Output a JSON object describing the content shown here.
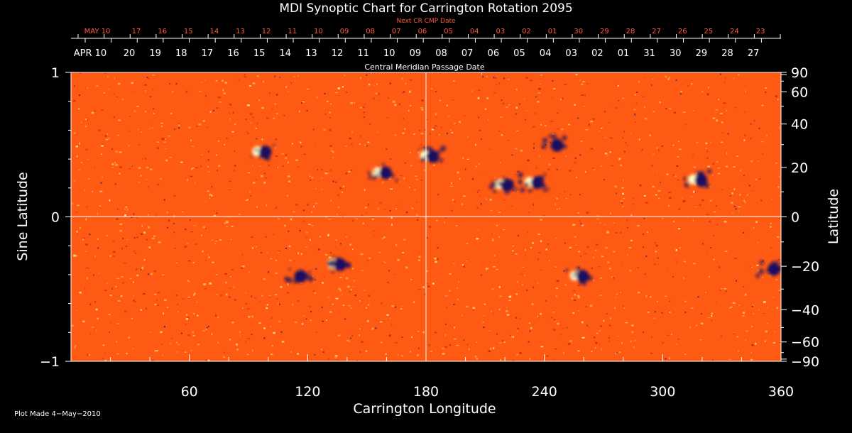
{
  "chart_data": {
    "type": "heatmap",
    "title": "MDI Synoptic Chart for Carrington Rotation 2095",
    "xlabel": "Carrington Longitude",
    "ylabel_left": "Sine Latitude",
    "ylabel_right": "Latitude",
    "xlim": [
      0,
      360
    ],
    "ylim_sine": [
      -1,
      1
    ],
    "x_ticks": [
      "60",
      "120",
      "180",
      "240",
      "300",
      "360"
    ],
    "y_ticks_left": [
      "1",
      "0",
      "−1"
    ],
    "y_ticks_right": [
      "90",
      "60",
      "40",
      "20",
      "0",
      "−20",
      "−40",
      "−60",
      "−90"
    ],
    "top_axis_label": "Central Meridian Passage Date",
    "top_axis_dates": [
      "APR 10",
      "20",
      "19",
      "18",
      "17",
      "16",
      "15",
      "14",
      "13",
      "12",
      "11",
      "10",
      "09",
      "08",
      "07",
      "06",
      "05",
      "04",
      "03",
      "02",
      "01",
      "31",
      "30",
      "29",
      "28",
      "27"
    ],
    "next_axis_label": "Next CR CMP Date",
    "next_axis_dates": [
      "MAY 10",
      "17",
      "16",
      "15",
      "14",
      "13",
      "12",
      "11",
      "10",
      "09",
      "08",
      "07",
      "06",
      "05",
      "04",
      "03",
      "02",
      "01",
      "30",
      "29",
      "28",
      "27",
      "26",
      "25",
      "24",
      "23"
    ],
    "colors": {
      "background": "#000000",
      "map_base": "#ff5a14",
      "positive_polarity": "#ffffd0",
      "negative_polarity": "#1a1060",
      "next_cr_text": "#ff5a3c",
      "gridline": "#ffffff"
    },
    "active_regions": [
      {
        "lon": 97,
        "lat": 27,
        "polarity": "mixed"
      },
      {
        "lon": 158,
        "lat": 18,
        "polarity": "mixed"
      },
      {
        "lon": 182,
        "lat": 25,
        "polarity": "mixed"
      },
      {
        "lon": 220,
        "lat": 13,
        "polarity": "mixed"
      },
      {
        "lon": 235,
        "lat": 14,
        "polarity": "mixed"
      },
      {
        "lon": 245,
        "lat": 30,
        "polarity": "negative"
      },
      {
        "lon": 318,
        "lat": 15,
        "polarity": "mixed"
      },
      {
        "lon": 258,
        "lat": -24,
        "polarity": "mixed"
      },
      {
        "lon": 135,
        "lat": -19,
        "polarity": "mixed"
      },
      {
        "lon": 115,
        "lat": -24,
        "polarity": "negative"
      },
      {
        "lon": 355,
        "lat": -21,
        "polarity": "negative"
      }
    ]
  },
  "footer": {
    "plot_made": "Plot Made  4−May−2010"
  }
}
